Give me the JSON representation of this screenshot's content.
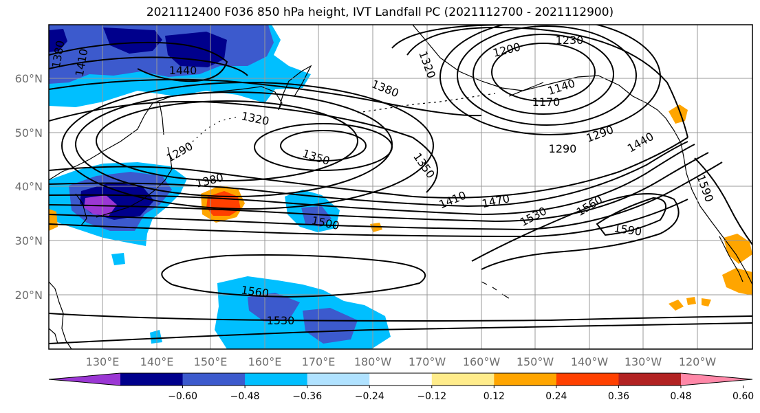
{
  "title": "2021112400 F036 850 hPa height, IVT Landfall PC (2021112700 - 2021112900)",
  "map": {
    "lon_ticks": [
      "130°E",
      "140°E",
      "150°E",
      "160°E",
      "170°E",
      "180°W",
      "170°W",
      "160°W",
      "150°W",
      "140°W",
      "130°W",
      "120°W"
    ],
    "lat_ticks": [
      "60°N",
      "50°N",
      "40°N",
      "30°N",
      "20°N"
    ],
    "contour_labels": [
      "1230",
      "1200",
      "1320",
      "1380",
      "1410",
      "1440",
      "1380",
      "1140",
      "1170",
      "1320",
      "1290",
      "1350",
      "1290",
      "1290",
      "1350",
      "1440",
      "1380",
      "1410",
      "1470",
      "1500",
      "1530",
      "1560",
      "1590",
      "1590",
      "1560",
      "1530"
    ]
  },
  "colorbar": {
    "ticks": [
      "−0.60",
      "−0.48",
      "−0.36",
      "−0.24",
      "−0.12",
      "0.12",
      "0.24",
      "0.36",
      "0.48",
      "0.60"
    ],
    "colors": [
      "#9b37d4",
      "#00008c",
      "#3c5acd",
      "#00bfff",
      "#b0e2ff",
      "#ffffff",
      "#ffec8b",
      "#ffa500",
      "#ff4000",
      "#b22222",
      "#ff88a8"
    ]
  }
}
